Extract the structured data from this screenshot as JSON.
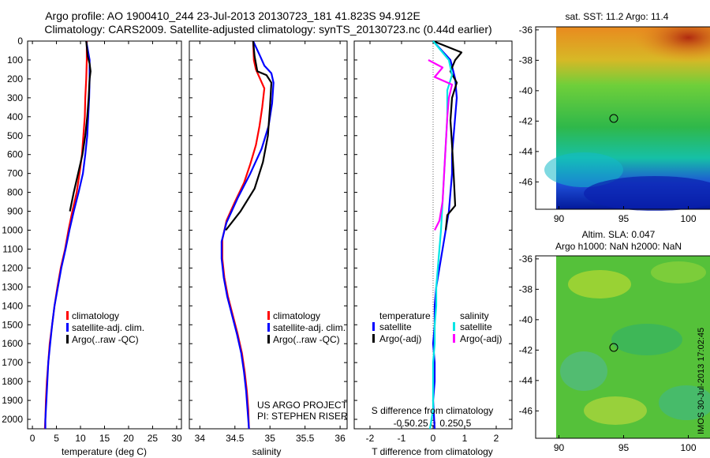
{
  "title_line1": "Argo profile: AO 1900410_244 23-Jul-2013 20130723_181 41.823S 94.912E",
  "title_line2": "Climatology: CARS2009. Satellite-adjusted climatology: synTS_20130723.nc (0.44d earlier)",
  "colors": {
    "climatology": "#ff0000",
    "satellite": "#0000ff",
    "argo": "#000000",
    "satellite_salinity": "#00e5e5",
    "argo_salinity": "#ff00ff"
  },
  "depth_ticks": [
    "0",
    "100",
    "200",
    "300",
    "400",
    "500",
    "600",
    "700",
    "800",
    "900",
    "1000",
    "1100",
    "1200",
    "1300",
    "1400",
    "1500",
    "1600",
    "1700",
    "1800",
    "1900",
    "2000"
  ],
  "panel1": {
    "xlabel": "temperature (deg C)",
    "xticks": [
      "0",
      "5",
      "10",
      "15",
      "20",
      "25",
      "30"
    ],
    "legend": [
      "climatology",
      "satellite-adj. clim.",
      "Argo(..raw -QC)"
    ]
  },
  "panel2": {
    "xlabel": "salinity",
    "xticks": [
      "34",
      "34.5",
      "35",
      "35.5",
      "36"
    ],
    "legend": [
      "climatology",
      "satellite-adj. clim.",
      "Argo(..raw -QC)"
    ],
    "credit1": "US ARGO PROJECT",
    "credit2": "PI: STEPHEN RISER"
  },
  "panel3": {
    "xlabel": "T difference from climatology",
    "xticks": [
      "-2",
      "-1",
      "0",
      "1",
      "2"
    ],
    "top_label": "S difference from climatology",
    "top_ticks": [
      "-0.5",
      "-0.25",
      "0",
      "0.25",
      "0.5"
    ],
    "legend_head_t": "temperature",
    "legend_head_s": "salinity",
    "legend_t": [
      "satellite",
      "Argo(-adj)"
    ],
    "legend_s": [
      "satellite",
      "Argo(-adj)"
    ]
  },
  "map1": {
    "title": "sat. SST: 11.2  Argo: 11.4",
    "yticks": [
      "-36",
      "-38",
      "-40",
      "-42",
      "-44",
      "-46"
    ],
    "xticks": [
      "90",
      "95",
      "100"
    ]
  },
  "map2": {
    "title1": "Altim. SLA: 0.047",
    "title2": "Argo h1000: NaN h2000: NaN",
    "yticks": [
      "-36",
      "-38",
      "-40",
      "-42",
      "-44",
      "-46"
    ],
    "xticks": [
      "90",
      "95",
      "100"
    ]
  },
  "timestamp": "IMOS 30-Jul-2013 17:02:45",
  "chart_data": [
    {
      "type": "line",
      "title": "",
      "xlabel": "temperature (deg C)",
      "ylabel": "",
      "xlim": [
        -1,
        31
      ],
      "ylim": [
        2050,
        0
      ],
      "series": [
        {
          "name": "climatology",
          "color": "#ff0000",
          "x": [
            11.3,
            11.3,
            11.2,
            11.0,
            10.9,
            10.6,
            10.3,
            9.8,
            9.2,
            8.3,
            7.5,
            6.8,
            5.9,
            5.2,
            4.6,
            4.1,
            3.6,
            3.3,
            3.0,
            2.8,
            2.7,
            2.6
          ],
          "y": [
            0,
            100,
            200,
            300,
            400,
            500,
            600,
            700,
            800,
            900,
            1000,
            1100,
            1200,
            1300,
            1400,
            1500,
            1600,
            1700,
            1800,
            1900,
            2000,
            2050
          ]
        },
        {
          "name": "satellite-adj. clim.",
          "color": "#0000ff",
          "x": [
            11.2,
            11.9,
            11.9,
            11.8,
            11.6,
            11.4,
            11.0,
            10.5,
            9.6,
            8.6,
            7.7,
            6.9,
            6.0,
            5.3,
            4.6,
            4.1,
            3.7,
            3.3,
            3.1,
            2.9,
            2.7,
            2.7
          ],
          "y": [
            0,
            100,
            200,
            300,
            400,
            500,
            600,
            700,
            800,
            900,
            1000,
            1100,
            1200,
            1300,
            1400,
            1500,
            1600,
            1700,
            1800,
            1900,
            2000,
            2050
          ]
        },
        {
          "name": "Argo(..raw -QC)",
          "color": "#000000",
          "x": [
            11.2,
            11.5,
            11.9,
            12.1,
            11.9,
            11.7,
            11.4,
            11.0,
            10.4,
            9.5,
            8.6,
            7.8
          ],
          "y": [
            0,
            80,
            120,
            160,
            200,
            300,
            400,
            500,
            600,
            700,
            800,
            900
          ]
        }
      ]
    },
    {
      "type": "line",
      "title": "",
      "xlabel": "salinity",
      "ylabel": "",
      "xlim": [
        33.85,
        36.1
      ],
      "ylim": [
        2050,
        0
      ],
      "series": [
        {
          "name": "climatology",
          "color": "#ff0000",
          "x": [
            34.76,
            34.77,
            34.8,
            34.92,
            34.89,
            34.85,
            34.8,
            34.72,
            34.63,
            34.5,
            34.38,
            34.32,
            34.32,
            34.35,
            34.4,
            34.47,
            34.54,
            34.6,
            34.64,
            34.67,
            34.69,
            34.7
          ],
          "y": [
            0,
            100,
            150,
            250,
            350,
            450,
            550,
            650,
            750,
            850,
            950,
            1050,
            1150,
            1250,
            1350,
            1450,
            1550,
            1650,
            1750,
            1850,
            1950,
            2050
          ]
        },
        {
          "name": "satellite-adj. clim.",
          "color": "#0000ff",
          "x": [
            34.76,
            34.86,
            34.92,
            35.02,
            35.05,
            35.03,
            34.98,
            34.88,
            34.72,
            34.54,
            34.38,
            34.31,
            34.31,
            34.34,
            34.39,
            34.46,
            34.53,
            34.59,
            34.63,
            34.66,
            34.68,
            34.7
          ],
          "y": [
            0,
            80,
            130,
            170,
            220,
            330,
            450,
            570,
            700,
            830,
            960,
            1060,
            1150,
            1250,
            1350,
            1450,
            1550,
            1650,
            1750,
            1850,
            1950,
            2050
          ]
        },
        {
          "name": "Argo(..raw -QC)",
          "color": "#000000",
          "x": [
            34.76,
            34.78,
            34.82,
            34.95,
            35.02,
            35.0,
            34.97,
            34.9,
            34.78,
            34.58,
            34.37
          ],
          "y": [
            0,
            80,
            160,
            180,
            220,
            350,
            500,
            640,
            780,
            900,
            1000
          ]
        }
      ]
    },
    {
      "type": "line",
      "title": "",
      "xlabel": "T difference from climatology",
      "ylabel": "",
      "xlim": [
        -2.5,
        2.5
      ],
      "ylim": [
        2050,
        0
      ],
      "series": [
        {
          "name": "temperature satellite",
          "color": "#0000ff",
          "x": [
            0.0,
            0.55,
            0.7,
            0.75,
            0.7,
            0.65,
            0.6,
            0.6,
            0.55,
            0.5,
            0.4,
            0.3,
            0.2,
            0.1,
            0.05,
            0.05,
            0.0,
            0.05,
            0.05,
            0.0,
            0.05
          ],
          "y": [
            0,
            100,
            200,
            300,
            400,
            500,
            600,
            700,
            800,
            900,
            1000,
            1100,
            1200,
            1300,
            1400,
            1500,
            1600,
            1700,
            1800,
            1900,
            2050
          ]
        },
        {
          "name": "temperature Argo(-adj)",
          "color": "#000000",
          "x": [
            0.0,
            0.9,
            0.7,
            0.55,
            0.75,
            0.6,
            0.55,
            0.6,
            0.65,
            0.7,
            0.45,
            0.4
          ],
          "y": [
            0,
            60,
            100,
            160,
            220,
            300,
            420,
            550,
            700,
            870,
            920,
            1000
          ]
        },
        {
          "name": "salinity satellite",
          "color": "#00e5e5",
          "x": [
            0.0,
            0.5,
            0.6,
            0.45,
            0.45,
            0.4,
            0.35,
            0.3,
            0.25,
            0.2,
            0.15,
            0.1,
            0.1,
            0.05,
            0.05,
            0.0,
            0.0,
            0.0,
            0.0,
            -0.05,
            -0.1
          ],
          "y": [
            0,
            100,
            180,
            260,
            400,
            550,
            700,
            850,
            1000,
            1100,
            1200,
            1300,
            1400,
            1500,
            1600,
            1700,
            1800,
            1900,
            1950,
            2000,
            2050
          ]
        },
        {
          "name": "salinity Argo(-adj)",
          "color": "#ff00ff",
          "x": [
            -0.15,
            0.3,
            0.05,
            0.6,
            0.5,
            0.45,
            0.4,
            0.35,
            0.3,
            0.2,
            0.05
          ],
          "y": [
            100,
            140,
            190,
            230,
            300,
            400,
            550,
            700,
            850,
            950,
            1000
          ]
        }
      ]
    }
  ]
}
